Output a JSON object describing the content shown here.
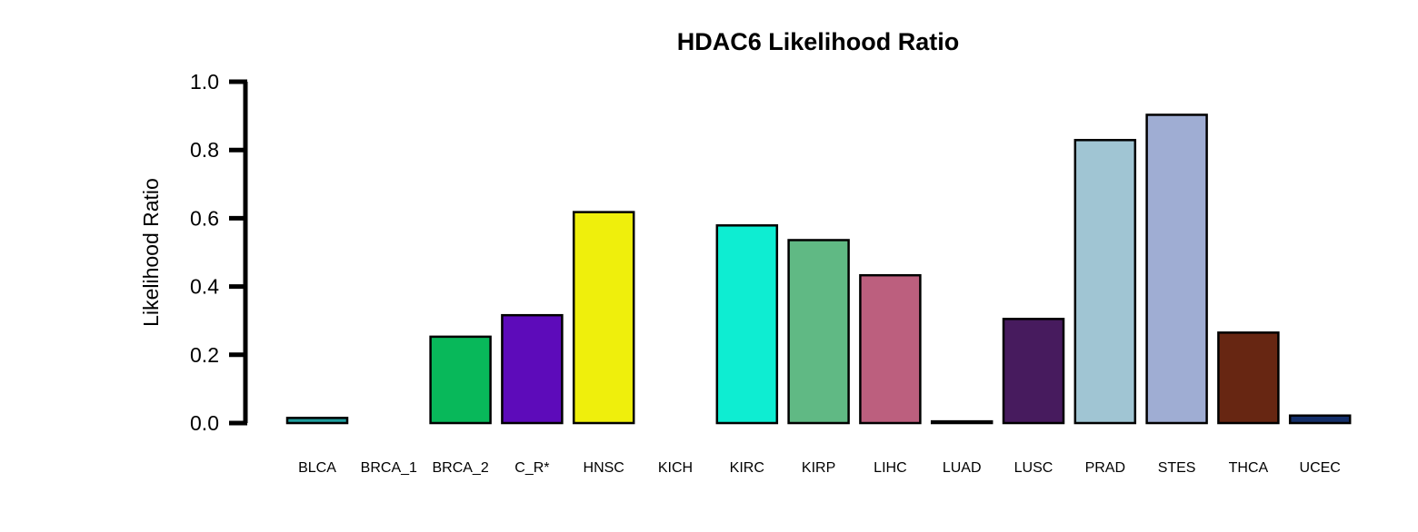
{
  "chart_data": {
    "type": "bar",
    "title": "HDAC6 Likelihood Ratio",
    "xlabel": "",
    "ylabel": "Likelihood Ratio",
    "ylim": [
      0,
      1
    ],
    "yticks": [
      "0.0",
      "0.2",
      "0.4",
      "0.6",
      "0.8",
      "1.0"
    ],
    "grid": false,
    "categories": [
      "BLCA",
      "BRCA_1",
      "BRCA_2",
      "C_R*",
      "HNSC",
      "KICH",
      "KIRC",
      "KIRP",
      "LIHC",
      "LUAD",
      "LUSC",
      "PRAD",
      "STES",
      "THCA",
      "UCEC"
    ],
    "values": [
      0.015,
      0.0,
      0.253,
      0.316,
      0.618,
      0.0,
      0.579,
      0.536,
      0.433,
      0.005,
      0.305,
      0.829,
      0.903,
      0.265,
      0.022
    ],
    "colors": [
      "#1f9e9e",
      "#3cb2a8",
      "#08b85a",
      "#5d0bba",
      "#efef0c",
      "#6fd0b0",
      "#0eedd2",
      "#60b984",
      "#bc5f7e",
      "#5a9e8a",
      "#471b5e",
      "#a0c5d3",
      "#9fadd3",
      "#672612",
      "#142f6a"
    ]
  }
}
